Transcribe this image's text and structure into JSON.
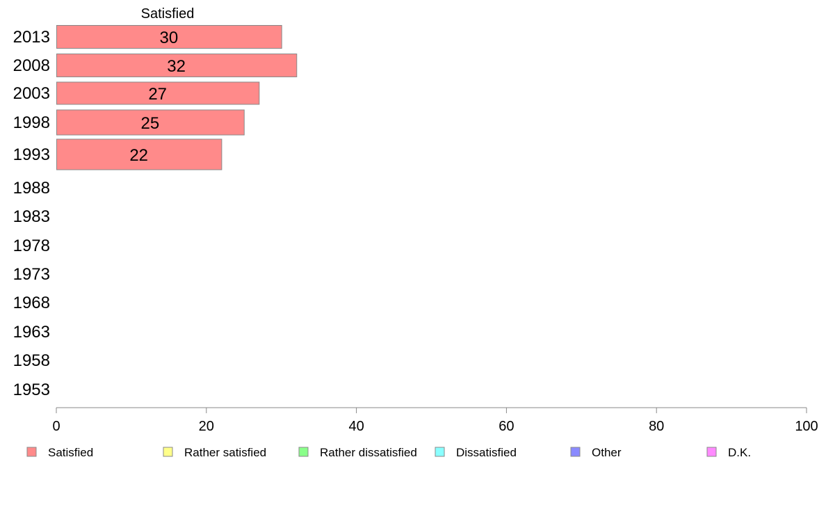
{
  "chart_data": {
    "type": "bar",
    "orientation": "horizontal",
    "series_header": "Satisfied",
    "categories": [
      "2013",
      "2008",
      "2003",
      "1998",
      "1993",
      "1988",
      "1983",
      "1978",
      "1973",
      "1968",
      "1963",
      "1958",
      "1953"
    ],
    "series": [
      {
        "name": "Satisfied",
        "values": [
          30,
          32,
          27,
          25,
          22,
          null,
          null,
          null,
          null,
          null,
          null,
          null,
          null
        ]
      }
    ],
    "xlim": [
      0,
      100
    ],
    "x_ticks": [
      0,
      20,
      40,
      60,
      80,
      100
    ],
    "grid": false,
    "legend_position": "bottom",
    "legend": [
      {
        "label": "Satisfied",
        "color": "#ff8a8a"
      },
      {
        "label": "Rather satisfied",
        "color": "#ffff8a"
      },
      {
        "label": "Rather dissatisfied",
        "color": "#8aff8a"
      },
      {
        "label": "Dissatisfied",
        "color": "#8affff"
      },
      {
        "label": "Other",
        "color": "#8a8aff"
      },
      {
        "label": "D.K.",
        "color": "#ff8aff"
      }
    ],
    "bar_color": "#ff8a8a",
    "bar_stroke": "#888888",
    "axis_color": "#888888"
  }
}
